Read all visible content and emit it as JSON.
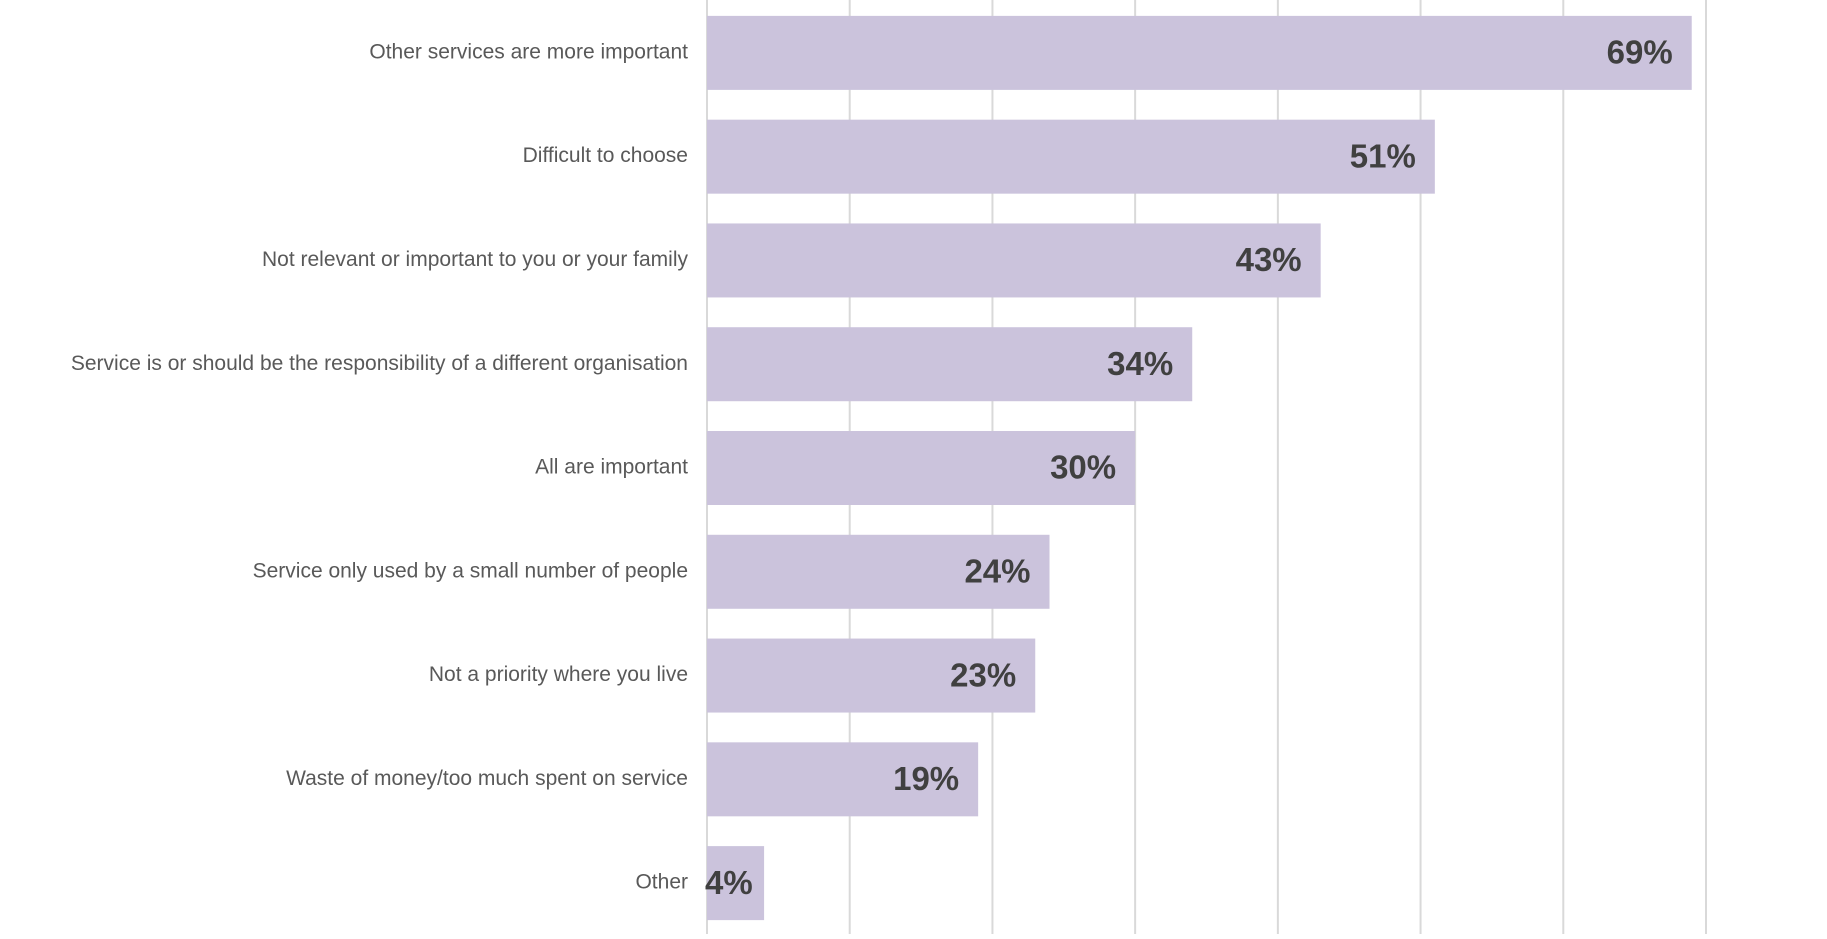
{
  "chart_data": {
    "type": "barh",
    "categories": [
      "Other services are more important",
      "Difficult to choose",
      "Not relevant or important to you or your family",
      "Service is or should be the responsibility of a different organisation",
      "All are important",
      "Service only used by a small number of people",
      "Not a priority where you live",
      "Waste of money/too much spent on service",
      "Other"
    ],
    "values": [
      69,
      51,
      43,
      34,
      30,
      24,
      23,
      19,
      4
    ],
    "value_labels": [
      "69%",
      "51%",
      "43%",
      "34%",
      "30%",
      "24%",
      "23%",
      "19%",
      "4%"
    ],
    "color": "#cbc3dc",
    "xlim": [
      0,
      70
    ],
    "xticks": [
      0,
      10,
      20,
      30,
      40,
      50,
      60,
      70
    ],
    "grid": true
  }
}
